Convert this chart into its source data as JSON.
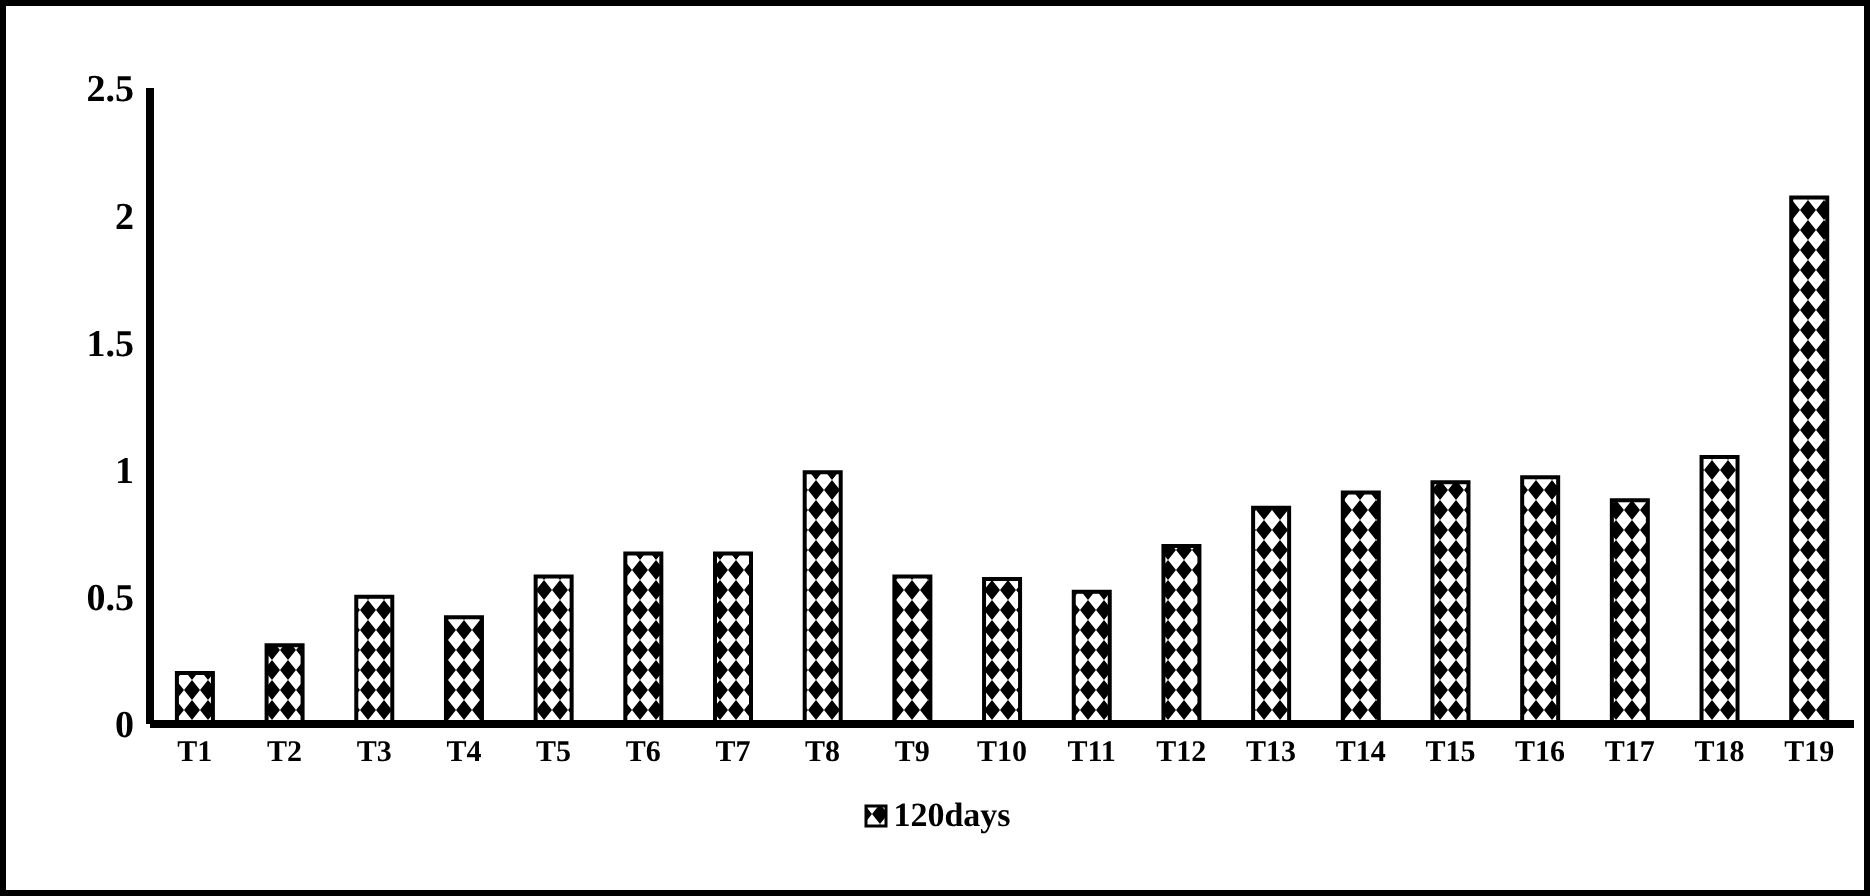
{
  "chart_data": {
    "type": "bar",
    "categories": [
      "T1",
      "T2",
      "T3",
      "T4",
      "T5",
      "T6",
      "T7",
      "T8",
      "T9",
      "T10",
      "T11",
      "T12",
      "T13",
      "T14",
      "T15",
      "T16",
      "T17",
      "T18",
      "T19"
    ],
    "series": [
      {
        "name": "120days",
        "color": "#000000",
        "values": [
          0.2,
          0.31,
          0.5,
          0.42,
          0.58,
          0.67,
          0.67,
          0.99,
          0.58,
          0.57,
          0.52,
          0.7,
          0.85,
          0.91,
          0.95,
          0.97,
          0.88,
          1.05,
          2.07
        ]
      }
    ],
    "ylim": [
      0,
      2.5
    ],
    "yticks": [
      0,
      0.5,
      1,
      1.5,
      2,
      2.5
    ],
    "grid": false,
    "legend": "bottom"
  }
}
